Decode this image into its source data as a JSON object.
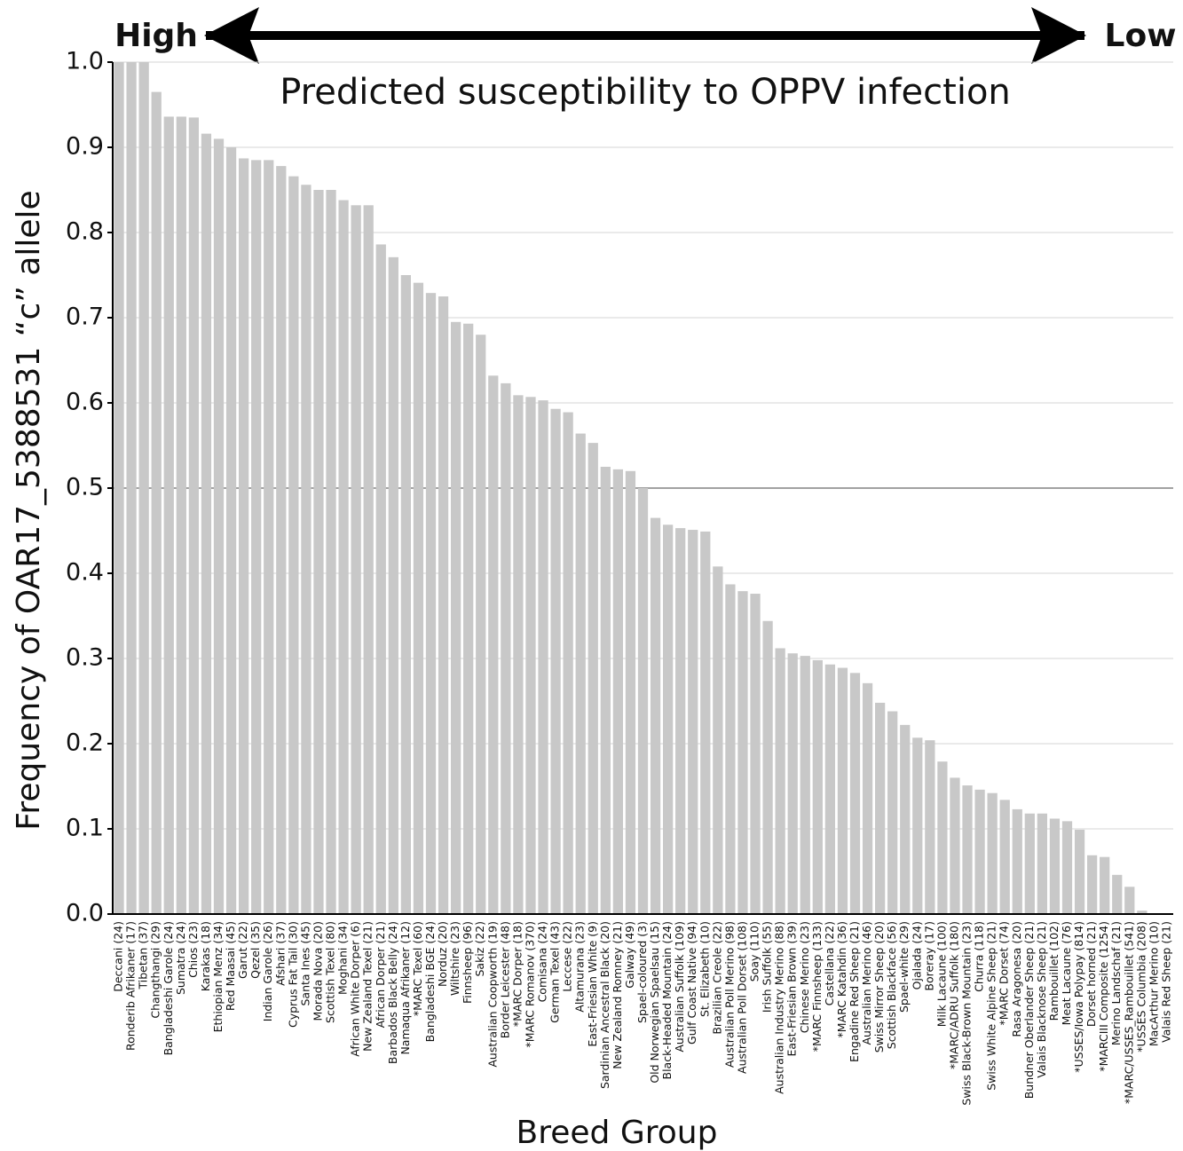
{
  "chart_data": {
    "type": "bar",
    "title": "Predicted susceptibility to OPPV infection",
    "left_annotation": "High",
    "right_annotation": "Low",
    "x_label": "Breed Group",
    "y_label": "Frequency of OAR17_5388531 “c” allele",
    "categories": [
      "Deccani (24)",
      "Ronderib Afrikaner (17)",
      "Tibetan (37)",
      "Changthangi (29)",
      "Bangladeshi Garole (24)",
      "Sumatra (24)",
      "Chios (23)",
      "Karakas (18)",
      "Ethiopian Menz (34)",
      "Red Maasai (45)",
      "Garut (22)",
      "Qezel (35)",
      "Indian Garole (26)",
      "Afshari (37)",
      "Cyprus Fat Tail (30)",
      "Santa Ines (45)",
      "Morada Nova (20)",
      "Scottish Texel (80)",
      "Moghani (34)",
      "African White Dorper (6)",
      "New Zealand Texel (21)",
      "African Dorper (21)",
      "Barbados Black Belly (24)",
      "Namaqua Afrikaner (12)",
      "*MARC Texel (60)",
      "Bangladeshi BGE (24)",
      "Norduz (20)",
      "Wiltshire (23)",
      "Finnsheep (96)",
      "Sakiz (22)",
      "Australian Coopworth (19)",
      "Border Leicester (48)",
      "*MARC Dorper (18)",
      "*MARC Romanov (370)",
      "Comisana (24)",
      "German Texel (43)",
      "Leccese (22)",
      "Altamurana (23)",
      "East-Friesian White (9)",
      "Sardinian Ancestral Black (20)",
      "New Zealand Romney (21)",
      "Galway (49)",
      "Spael-coloured (3)",
      "Old Norwegian Spaelsau (15)",
      "Black-Headed Mountain (24)",
      "Australian Suffolk (109)",
      "Gulf Coast Native (94)",
      "St. Elizabeth (10)",
      "Brazilian Creole (22)",
      "Australian Poll Merino (98)",
      "Australian Poll Dorset (108)",
      "Soay (110)",
      "Irish Suffolk (55)",
      "Australian Industry Merino (88)",
      "East-Friesian Brown (39)",
      "Chinese Merino (23)",
      "*MARC Finnsheep (133)",
      "Castellana (22)",
      "*MARC Katahdin (36)",
      "Engadine Red Sheep (21)",
      "Australian Merino (46)",
      "Swiss Mirror Sheep (20)",
      "Scottish Blackface (56)",
      "Spael-white (29)",
      "Ojalada (24)",
      "Boreray (17)",
      "Milk Lacaune (100)",
      "*MARC/ADRU Suffolk (180)",
      "Swiss Black-Brown Mountain (23)",
      "Churra (118)",
      "Swiss White Alpine Sheep (21)",
      "*MARC Dorset (74)",
      "Rasa Aragonesa (20)",
      "Bundner Oberlander Sheep (21)",
      "Valais Blacknose Sheep (21)",
      "Rambouillet (102)",
      "Meat Lacaune (76)",
      "*USSES/Iowa Polypay (814)",
      "Dorset horned (21)",
      "*MARCIII Composite (1254)",
      "Merino Landschaf (21)",
      "*MARC/USSES_Rambouillet (541)",
      "*USSES Columbia (208)",
      "MacArthur Merino (10)",
      "Valais Red Sheep (21)"
    ],
    "values": [
      1.0,
      1.0,
      1.0,
      0.965,
      0.936,
      0.936,
      0.935,
      0.916,
      0.91,
      0.9,
      0.887,
      0.885,
      0.885,
      0.878,
      0.866,
      0.856,
      0.85,
      0.85,
      0.838,
      0.832,
      0.832,
      0.786,
      0.771,
      0.75,
      0.741,
      0.729,
      0.725,
      0.695,
      0.693,
      0.68,
      0.632,
      0.623,
      0.609,
      0.607,
      0.603,
      0.593,
      0.589,
      0.564,
      0.553,
      0.525,
      0.522,
      0.52,
      0.5,
      0.465,
      0.457,
      0.453,
      0.451,
      0.449,
      0.408,
      0.387,
      0.379,
      0.376,
      0.344,
      0.312,
      0.306,
      0.303,
      0.298,
      0.293,
      0.289,
      0.283,
      0.271,
      0.248,
      0.238,
      0.222,
      0.207,
      0.204,
      0.179,
      0.16,
      0.151,
      0.146,
      0.142,
      0.134,
      0.123,
      0.118,
      0.118,
      0.112,
      0.109,
      0.099,
      0.069,
      0.067,
      0.046,
      0.032,
      0.004,
      0,
      0
    ],
    "color": "#c8c8c8",
    "ylim": [
      0,
      1
    ],
    "yticks": [
      {
        "value": 0,
        "label": "0.0"
      },
      0.1,
      0.2,
      0.3,
      0.4,
      0.5,
      0.6,
      0.7,
      0.8,
      0.9,
      {
        "value": 1,
        "label": "1.0"
      }
    ],
    "grid": true,
    "reference_line": 0.5
  }
}
